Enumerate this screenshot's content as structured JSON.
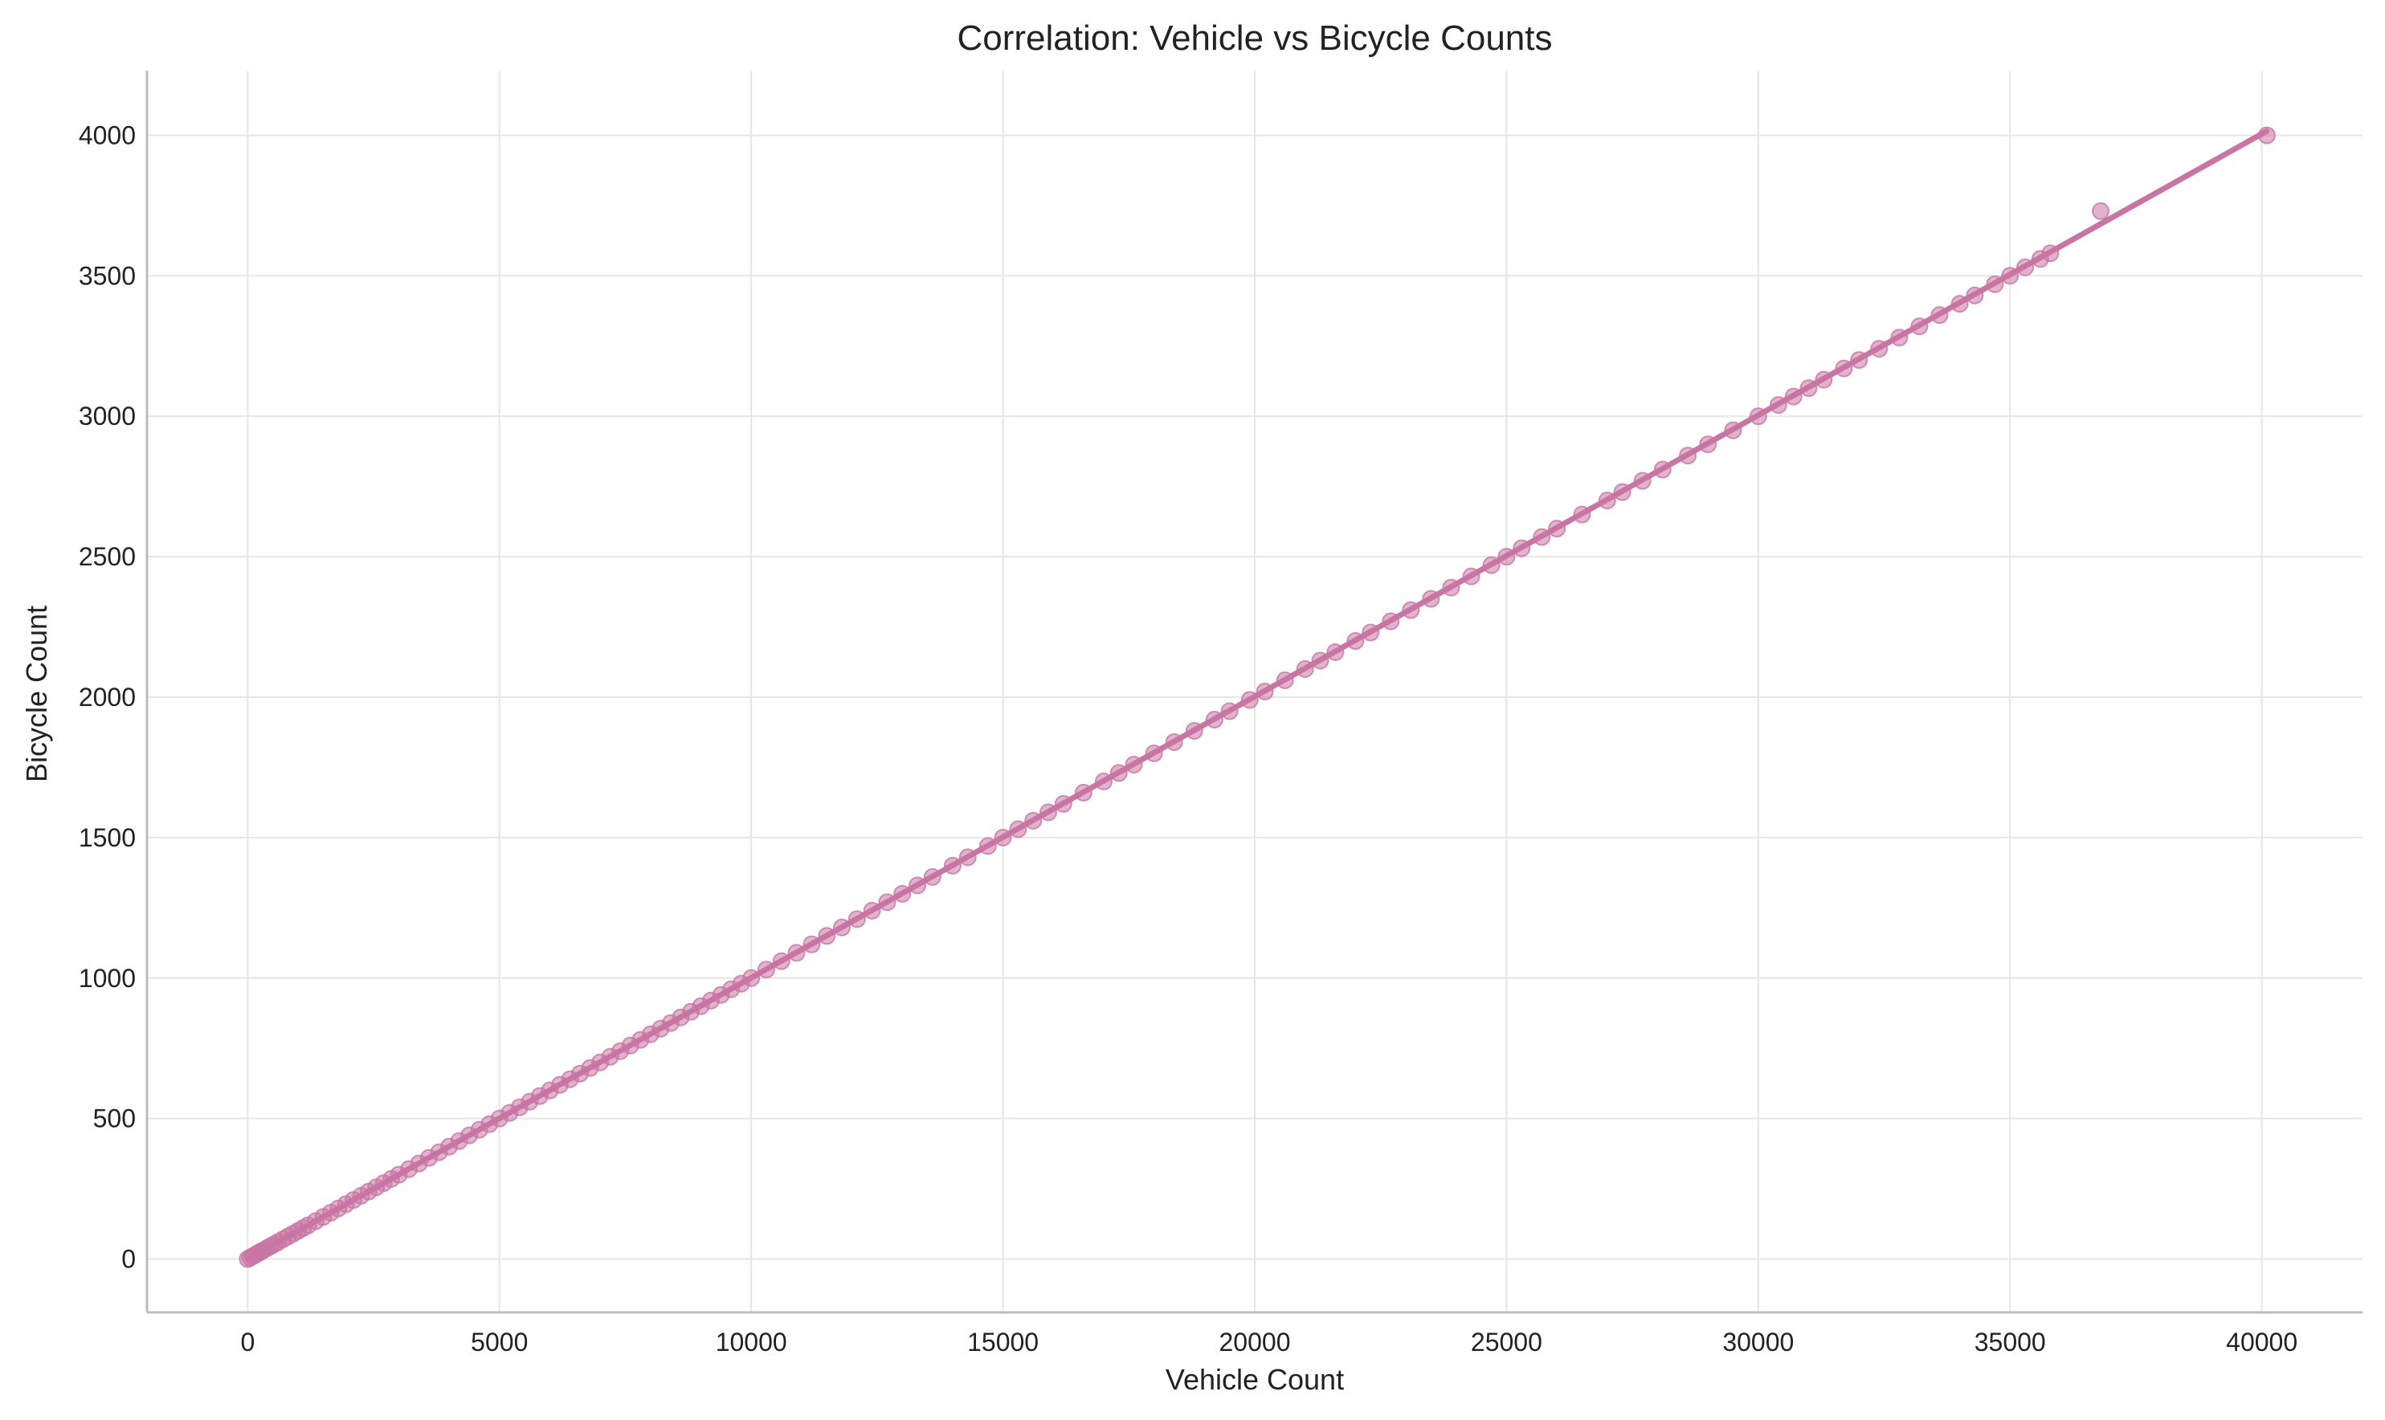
{
  "chart_data": {
    "type": "scatter",
    "title": "Correlation: Vehicle vs Bicycle Counts",
    "xlabel": "Vehicle Count",
    "ylabel": "Bicycle Count",
    "xlim": [
      -2000,
      42000
    ],
    "ylim": [
      -190,
      4230
    ],
    "xticks": [
      0,
      5000,
      10000,
      15000,
      20000,
      25000,
      30000,
      35000,
      40000
    ],
    "yticks": [
      0,
      500,
      1000,
      1500,
      2000,
      2500,
      3000,
      3500,
      4000
    ],
    "grid": true,
    "color": "#c875a4",
    "trend_line": {
      "x": [
        0,
        40100
      ],
      "y": [
        0,
        4015
      ]
    },
    "x": [
      0,
      50,
      100,
      150,
      200,
      250,
      300,
      380,
      450,
      520,
      600,
      700,
      800,
      900,
      1000,
      1100,
      1200,
      1350,
      1500,
      1650,
      1800,
      1950,
      2100,
      2250,
      2400,
      2550,
      2700,
      2850,
      3000,
      3200,
      3400,
      3600,
      3800,
      4000,
      4200,
      4400,
      4600,
      4800,
      5000,
      5200,
      5400,
      5600,
      5800,
      6000,
      6200,
      6400,
      6600,
      6800,
      7000,
      7200,
      7400,
      7600,
      7800,
      8000,
      8200,
      8400,
      8600,
      8800,
      9000,
      9200,
      9400,
      9600,
      9800,
      10000,
      10300,
      10600,
      10900,
      11200,
      11500,
      11800,
      12100,
      12400,
      12700,
      13000,
      13300,
      13600,
      14000,
      14300,
      14700,
      15000,
      15300,
      15600,
      15900,
      16200,
      16600,
      17000,
      17300,
      17600,
      18000,
      18400,
      18800,
      19200,
      19500,
      19900,
      20200,
      20600,
      21000,
      21300,
      21600,
      22000,
      22300,
      22700,
      23100,
      23500,
      23900,
      24300,
      24700,
      25000,
      25300,
      25700,
      26000,
      26500,
      27000,
      27300,
      27700,
      28100,
      28600,
      29000,
      29500,
      30000,
      30400,
      30700,
      31000,
      31300,
      31700,
      32000,
      32400,
      32800,
      33200,
      33600,
      34000,
      34300,
      34700,
      35000,
      35300,
      35600,
      35800,
      36800,
      40100
    ],
    "y": [
      0,
      5,
      10,
      15,
      20,
      25,
      30,
      38,
      45,
      52,
      60,
      70,
      80,
      90,
      100,
      110,
      120,
      135,
      150,
      165,
      180,
      195,
      210,
      225,
      240,
      255,
      270,
      285,
      300,
      320,
      340,
      360,
      380,
      400,
      420,
      440,
      460,
      480,
      500,
      520,
      540,
      560,
      580,
      600,
      620,
      640,
      660,
      680,
      700,
      720,
      740,
      760,
      780,
      800,
      820,
      840,
      860,
      880,
      900,
      920,
      940,
      960,
      980,
      1000,
      1030,
      1060,
      1090,
      1120,
      1150,
      1180,
      1210,
      1240,
      1270,
      1300,
      1330,
      1360,
      1400,
      1430,
      1470,
      1500,
      1530,
      1560,
      1590,
      1620,
      1660,
      1700,
      1730,
      1760,
      1800,
      1840,
      1880,
      1920,
      1950,
      1990,
      2020,
      2060,
      2100,
      2130,
      2160,
      2200,
      2230,
      2270,
      2310,
      2350,
      2390,
      2430,
      2470,
      2500,
      2530,
      2570,
      2600,
      2650,
      2700,
      2730,
      2770,
      2810,
      2860,
      2900,
      2950,
      3000,
      3040,
      3070,
      3100,
      3130,
      3170,
      3200,
      3240,
      3280,
      3320,
      3360,
      3400,
      3430,
      3470,
      3500,
      3530,
      3560,
      3580,
      3730,
      4000
    ]
  }
}
